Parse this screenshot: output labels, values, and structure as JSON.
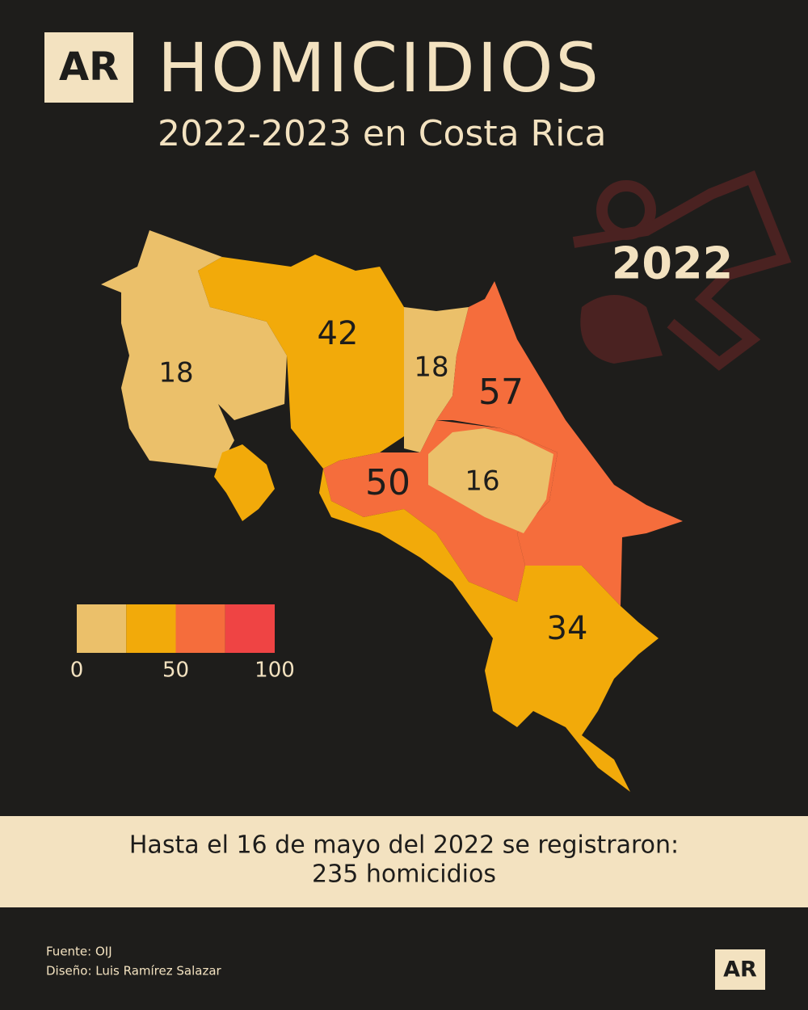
{
  "header": {
    "logo": "AR",
    "title": "HOMICIDIOS",
    "subtitle": "2022-2023 en Costa Rica"
  },
  "year": "2022",
  "map": {
    "regions": [
      {
        "value": 18,
        "color": "#ebc06a"
      },
      {
        "value": 42,
        "color": "#f2aa0a"
      },
      {
        "value": 18,
        "color": "#ebc06a"
      },
      {
        "value": 57,
        "color": "#f56d3c"
      },
      {
        "value": 50,
        "color": "#f56d3c"
      },
      {
        "value": 16,
        "color": "#ebc06a"
      },
      {
        "value": 34,
        "color": "#f2aa0a"
      }
    ]
  },
  "legend": {
    "colors": [
      "#ebc06a",
      "#f2aa0a",
      "#f56d3c",
      "#ef4444"
    ],
    "ticks": [
      0,
      50,
      100
    ]
  },
  "summary": {
    "line1": "Hasta el 16 de mayo del 2022 se registraron:",
    "line2": "235 homicidios"
  },
  "credits": {
    "source": "Fuente: OIJ",
    "design": "Diseño: Luis Ramírez Salazar"
  },
  "footer": {
    "logo": "AR"
  }
}
